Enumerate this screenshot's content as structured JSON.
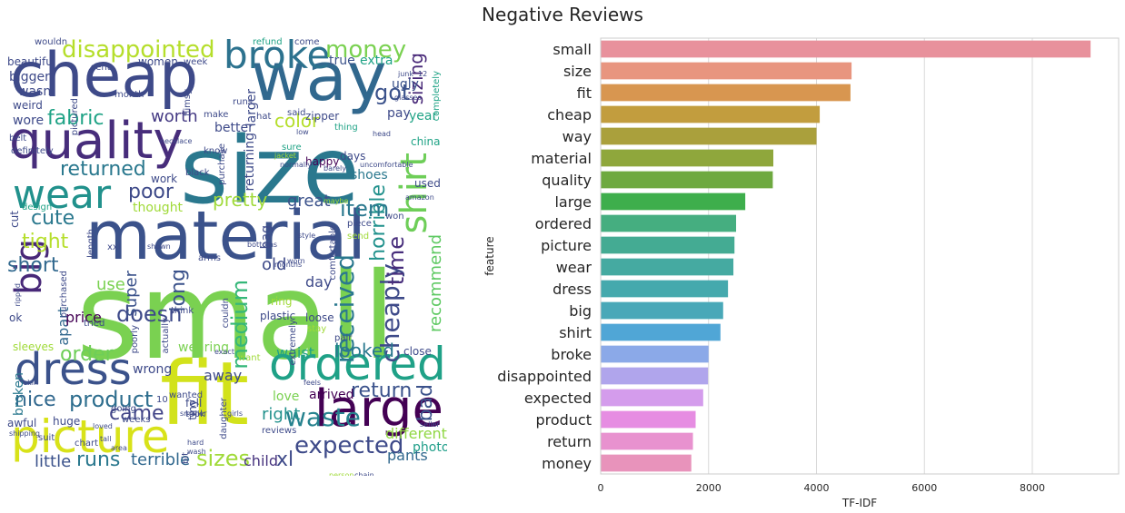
{
  "suptitle": "Negative Reviews",
  "wordcloud": {
    "words": [
      {
        "text": "small",
        "color": "#7ad151"
      },
      {
        "text": "size",
        "color": "#2a788e"
      },
      {
        "text": "material",
        "color": "#3b528b"
      },
      {
        "text": "cheap",
        "color": "#3e4a89"
      },
      {
        "text": "way",
        "color": "#31688e"
      },
      {
        "text": "fit",
        "color": "#d2e21b"
      },
      {
        "text": "quality",
        "color": "#472d7b"
      },
      {
        "text": "picture",
        "color": "#d8e219"
      },
      {
        "text": "large",
        "color": "#440154"
      },
      {
        "text": "dress",
        "color": "#3b528b"
      },
      {
        "text": "ordered",
        "color": "#1fa187"
      },
      {
        "text": "wear",
        "color": "#21918c"
      },
      {
        "text": "big",
        "color": "#482878"
      },
      {
        "text": "shirt",
        "color": "#6ece58"
      },
      {
        "text": "broke",
        "color": "#2c728e"
      },
      {
        "text": "disappointed",
        "color": "#b5de2b"
      },
      {
        "text": "money",
        "color": "#7ad151"
      },
      {
        "text": "expected",
        "color": "#3e4a89"
      },
      {
        "text": "product",
        "color": "#2e6e8e"
      },
      {
        "text": "return",
        "color": "#3b528b"
      },
      {
        "text": "received",
        "color": "#2a788e"
      },
      {
        "text": "cheaply",
        "color": "#3e4a89"
      },
      {
        "text": "horrible",
        "color": "#21918c"
      },
      {
        "text": "item",
        "color": "#2a788e"
      },
      {
        "text": "waste",
        "color": "#26828e"
      },
      {
        "text": "sizes",
        "color": "#a0da39"
      },
      {
        "text": "runs",
        "color": "#2a788e"
      },
      {
        "text": "came",
        "color": "#414487"
      },
      {
        "text": "nice",
        "color": "#31688e"
      },
      {
        "text": "tight",
        "color": "#b5de2b"
      },
      {
        "text": "cute",
        "color": "#2a788e"
      },
      {
        "text": "fabric",
        "color": "#20a386"
      },
      {
        "text": "returned",
        "color": "#2a788e"
      },
      {
        "text": "poor",
        "color": "#3e4a89"
      },
      {
        "text": "got",
        "color": "#3b528b"
      },
      {
        "text": "color",
        "color": "#b5de2b"
      },
      {
        "text": "sizing",
        "color": "#482878"
      },
      {
        "text": "worth",
        "color": "#443983"
      },
      {
        "text": "pretty",
        "color": "#a0da39"
      },
      {
        "text": "great",
        "color": "#3b528b"
      },
      {
        "text": "short",
        "color": "#31688e"
      },
      {
        "text": "time",
        "color": "#472d7b"
      },
      {
        "text": "doesn",
        "color": "#3e4a89"
      },
      {
        "text": "order",
        "color": "#6ece58"
      },
      {
        "text": "long",
        "color": "#3b528b"
      },
      {
        "text": "medium",
        "color": "#35b779"
      },
      {
        "text": "recommend",
        "color": "#5ec962"
      },
      {
        "text": "looked",
        "color": "#2a788e"
      },
      {
        "text": "xl",
        "color": "#3e4a89"
      },
      {
        "text": "bad",
        "color": "#3b528b"
      },
      {
        "text": "terrible",
        "color": "#31688e"
      },
      {
        "text": "little",
        "color": "#3b528b"
      },
      {
        "text": "right",
        "color": "#21918c"
      },
      {
        "text": "different",
        "color": "#90d743"
      },
      {
        "text": "pants",
        "color": "#31688e"
      },
      {
        "text": "photo",
        "color": "#1f9e89"
      },
      {
        "text": "child",
        "color": "#46327e"
      },
      {
        "text": "super",
        "color": "#3b528b"
      },
      {
        "text": "use",
        "color": "#7ad151"
      },
      {
        "text": "apart",
        "color": "#31688e"
      },
      {
        "text": "price",
        "color": "#440154"
      },
      {
        "text": "wrong",
        "color": "#3e4a89"
      },
      {
        "text": "away",
        "color": "#3e4a89"
      },
      {
        "text": "wearing",
        "color": "#7ad151"
      },
      {
        "text": "arrived",
        "color": "#440154"
      },
      {
        "text": "love",
        "color": "#7ad151"
      },
      {
        "text": "old",
        "color": "#3e4a89"
      },
      {
        "text": "bag",
        "color": "#3e4a89"
      },
      {
        "text": "day",
        "color": "#3e4a89"
      },
      {
        "text": "waist",
        "color": "#20a386"
      },
      {
        "text": "loose",
        "color": "#3e4a89"
      },
      {
        "text": "broken",
        "color": "#2a788e"
      },
      {
        "text": "true",
        "color": "#3b528b"
      },
      {
        "text": "extra",
        "color": "#20a386"
      },
      {
        "text": "ugly",
        "color": "#3b528b"
      },
      {
        "text": "pay",
        "color": "#3e4a89"
      },
      {
        "text": "year",
        "color": "#20a386"
      },
      {
        "text": "bigger",
        "color": "#3e4a89"
      },
      {
        "text": "wasn",
        "color": "#3e4a89"
      },
      {
        "text": "wore",
        "color": "#3e4a89"
      },
      {
        "text": "women",
        "color": "#3e4a89"
      },
      {
        "text": "better",
        "color": "#3e4a89"
      },
      {
        "text": "shoes",
        "color": "#2a788e"
      },
      {
        "text": "used",
        "color": "#3e4a89"
      },
      {
        "text": "china",
        "color": "#20a386"
      },
      {
        "text": "ok",
        "color": "#3e4a89"
      },
      {
        "text": "close",
        "color": "#3e4a89"
      },
      {
        "text": "fell",
        "color": "#3e4a89"
      },
      {
        "text": "thought",
        "color": "#a0da39"
      },
      {
        "text": "work",
        "color": "#3e4a89"
      },
      {
        "text": "cut",
        "color": "#3e4a89"
      },
      {
        "text": "sleeves",
        "color": "#a0da39"
      },
      {
        "text": "awful",
        "color": "#3e4a89"
      },
      {
        "text": "huge",
        "color": "#3e4a89"
      },
      {
        "text": "tiny",
        "color": "#3e4a89"
      },
      {
        "text": "weird",
        "color": "#3e4a89"
      },
      {
        "text": "beautiful",
        "color": "#3e4a89"
      },
      {
        "text": "refund",
        "color": "#20a386"
      },
      {
        "text": "come",
        "color": "#3e4a89"
      },
      {
        "text": "wouldn",
        "color": "#3e4a89"
      },
      {
        "text": "sent",
        "color": "#3e4a89"
      },
      {
        "text": "week",
        "color": "#3e4a89"
      },
      {
        "text": "completely",
        "color": "#20a386"
      },
      {
        "text": "month",
        "color": "#3e4a89"
      },
      {
        "text": "pictured",
        "color": "#3e4a89"
      },
      {
        "text": "flimsy",
        "color": "#3e4a89"
      },
      {
        "text": "runs",
        "color": "#3e4a89"
      },
      {
        "text": "larger",
        "color": "#3e4a89"
      },
      {
        "text": "make",
        "color": "#3e4a89"
      },
      {
        "text": "hat",
        "color": "#3e4a89"
      },
      {
        "text": "said",
        "color": "#3e4a89"
      },
      {
        "text": "zipper",
        "color": "#3e4a89"
      },
      {
        "text": "thing",
        "color": "#20a386"
      },
      {
        "text": "returning",
        "color": "#3e4a89"
      },
      {
        "text": "purchase",
        "color": "#3e4a89"
      },
      {
        "text": "know",
        "color": "#3e4a89"
      },
      {
        "text": "sure",
        "color": "#20a386"
      },
      {
        "text": "happy",
        "color": "#440154"
      },
      {
        "text": "days",
        "color": "#3e4a89"
      },
      {
        "text": "black",
        "color": "#3e4a89"
      },
      {
        "text": "definitely",
        "color": "#3e4a89"
      },
      {
        "text": "belt",
        "color": "#3e4a89"
      },
      {
        "text": "design",
        "color": "#20a386"
      },
      {
        "text": "send",
        "color": "#a0da39"
      },
      {
        "text": "piece",
        "color": "#3e4a89"
      },
      {
        "text": "won",
        "color": "#3e4a89"
      },
      {
        "text": "comfortable",
        "color": "#3e4a89"
      },
      {
        "text": "length",
        "color": "#3e4a89"
      },
      {
        "text": "purchased",
        "color": "#3e4a89"
      },
      {
        "text": "ring",
        "color": "#a0da39"
      },
      {
        "text": "plastic",
        "color": "#3e4a89"
      },
      {
        "text": "arms",
        "color": "#3e4a89"
      },
      {
        "text": "think",
        "color": "#3e4a89"
      },
      {
        "text": "couldn",
        "color": "#3e4a89"
      },
      {
        "text": "extremely",
        "color": "#3e4a89"
      },
      {
        "text": "tried",
        "color": "#3e4a89"
      },
      {
        "text": "poorly",
        "color": "#3e4a89"
      },
      {
        "text": "actually",
        "color": "#3e4a89"
      },
      {
        "text": "stay",
        "color": "#a0da39"
      },
      {
        "text": "pair",
        "color": "#3e4a89"
      },
      {
        "text": "want",
        "color": "#a0da39"
      },
      {
        "text": "wanted",
        "color": "#3e4a89"
      },
      {
        "text": "took",
        "color": "#3e4a89"
      },
      {
        "text": "daughter",
        "color": "#3e4a89"
      },
      {
        "text": "reviews",
        "color": "#3e4a89"
      },
      {
        "text": "chart",
        "color": "#3e4a89"
      },
      {
        "text": "weeks",
        "color": "#3e4a89"
      },
      {
        "text": "going",
        "color": "#3e4a89"
      },
      {
        "text": "10",
        "color": "#3e4a89"
      },
      {
        "text": "bit",
        "color": "#3e4a89"
      },
      {
        "text": "suit",
        "color": "#3e4a89"
      },
      {
        "text": "xxl",
        "color": "#3e4a89"
      },
      {
        "text": "12",
        "color": "#3e4a89"
      },
      {
        "text": "hard",
        "color": "#3e4a89"
      },
      {
        "text": "wash",
        "color": "#3e4a89"
      },
      {
        "text": "jacket",
        "color": "#a0da39"
      },
      {
        "text": "amazon",
        "color": "#3e4a89"
      },
      {
        "text": "maybe",
        "color": "#a0da39"
      },
      {
        "text": "shown",
        "color": "#3e4a89"
      },
      {
        "text": "months",
        "color": "#3e4a89"
      },
      {
        "text": "worn",
        "color": "#3e4a89"
      },
      {
        "text": "bottoms",
        "color": "#3e4a89"
      },
      {
        "text": "style",
        "color": "#3e4a89"
      },
      {
        "text": "barely",
        "color": "#3e4a89"
      },
      {
        "text": "normally",
        "color": "#3e4a89"
      },
      {
        "text": "uncomfortable",
        "color": "#3e4a89"
      },
      {
        "text": "glasses",
        "color": "#3e4a89"
      },
      {
        "text": "junk",
        "color": "#3e4a89"
      },
      {
        "text": "head",
        "color": "#3e4a89"
      },
      {
        "text": "low",
        "color": "#3e4a89"
      },
      {
        "text": "feels",
        "color": "#3e4a89"
      },
      {
        "text": "girls",
        "color": "#3e4a89"
      },
      {
        "text": "seller",
        "color": "#3e4a89"
      },
      {
        "text": "chain",
        "color": "#3e4a89"
      },
      {
        "text": "person",
        "color": "#a0da39"
      },
      {
        "text": "tall",
        "color": "#3e4a89"
      },
      {
        "text": "loved",
        "color": "#3e4a89"
      },
      {
        "text": "shipping",
        "color": "#3e4a89"
      },
      {
        "text": "skin",
        "color": "#3e4a89"
      },
      {
        "text": "necklace",
        "color": "#3e4a89"
      },
      {
        "text": "ripped",
        "color": "#3e4a89"
      },
      {
        "text": "smaller",
        "color": "#3e4a89"
      },
      {
        "text": "area",
        "color": "#3e4a89"
      },
      {
        "text": "exact",
        "color": "#3e4a89"
      }
    ]
  },
  "chart_data": {
    "type": "bar",
    "orientation": "horizontal",
    "categories": [
      "small",
      "size",
      "fit",
      "cheap",
      "way",
      "material",
      "quality",
      "large",
      "ordered",
      "picture",
      "wear",
      "dress",
      "big",
      "shirt",
      "broke",
      "disappointed",
      "expected",
      "product",
      "return",
      "money"
    ],
    "values": [
      9080,
      4650,
      4630,
      4060,
      4000,
      3200,
      3190,
      2680,
      2510,
      2480,
      2460,
      2360,
      2270,
      2220,
      2000,
      1990,
      1900,
      1760,
      1710,
      1680
    ],
    "colors": [
      "#e8919c",
      "#e8957f",
      "#d89650",
      "#c29d3e",
      "#aaa03c",
      "#8fa73c",
      "#6ea940",
      "#3eae4c",
      "#45ae80",
      "#44ab93",
      "#45aaa1",
      "#45a9ad",
      "#49a8b8",
      "#50a6d6",
      "#8ba9e8",
      "#b0a5ec",
      "#d49cec",
      "#e68de2",
      "#e892cf",
      "#e893bb"
    ],
    "xlabel": "TF-IDF",
    "ylabel": "feature",
    "xlim": [
      0,
      9600
    ],
    "xticks": [
      0,
      2000,
      4000,
      6000,
      8000
    ],
    "grid": "vertical"
  }
}
